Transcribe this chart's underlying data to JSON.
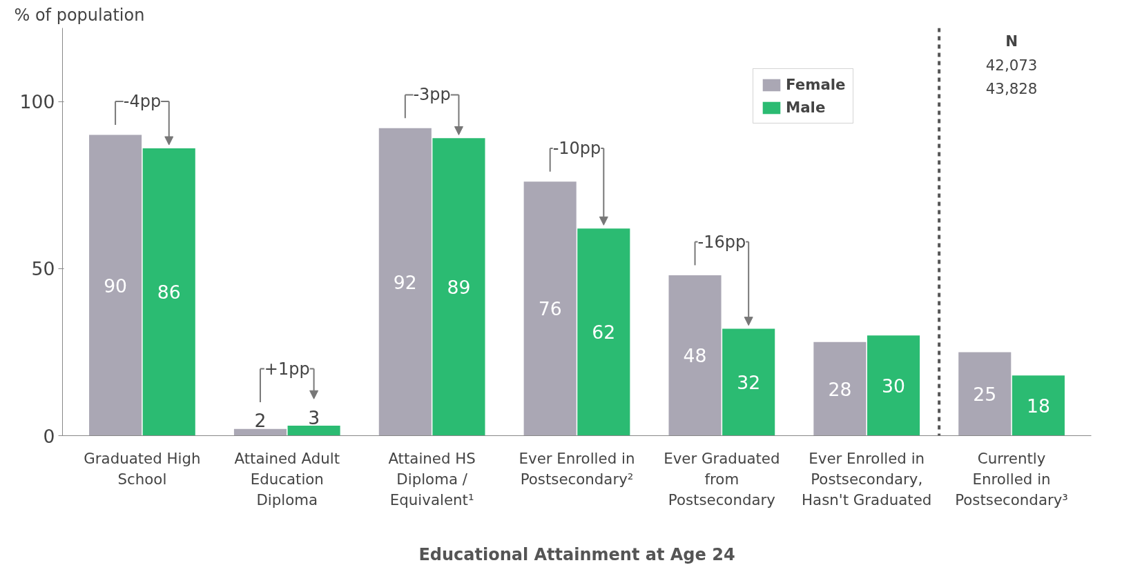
{
  "chart_data": {
    "type": "bar",
    "xlabel": "Educational Attainment at Age 24",
    "ylabel": "% of population",
    "categories": [
      "Graduated High School",
      "Attained Adult Education Diploma",
      "Attained HS Diploma / Equivalent¹",
      "Ever Enrolled in Postsecondary²",
      "Ever Graduated from Postsecondary",
      "Ever Enrolled in Postsecondary, Hasn't Graduated",
      "Currently Enrolled in Postsecondary³"
    ],
    "series": [
      {
        "name": "Female",
        "color": "#aaa7b4",
        "values": [
          90,
          2,
          92,
          76,
          48,
          28,
          25
        ]
      },
      {
        "name": "Male",
        "color": "#2bbb72",
        "values": [
          86,
          3,
          89,
          62,
          32,
          30,
          18
        ]
      }
    ],
    "ylim": [
      0,
      122
    ],
    "yticks": [
      0,
      50,
      100
    ],
    "data_labels": true,
    "legend": "top right",
    "grid": false,
    "annotations": [
      "-4pp",
      "+1pp",
      "-3pp",
      "-10pp",
      "-16pp",
      "N",
      "42,073",
      "43,828"
    ]
  }
}
